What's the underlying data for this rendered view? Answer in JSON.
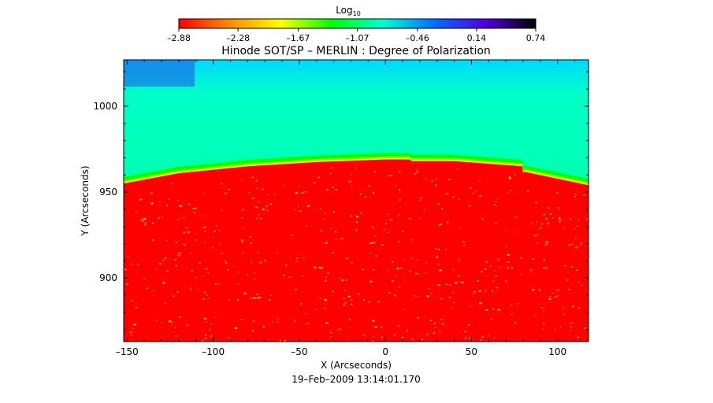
{
  "chart_data": {
    "type": "heatmap",
    "title": "Hinode SOT/SP – MERLIN : Degree of Polarization",
    "xlabel": "X (Arcseconds)",
    "ylabel": "Y (Arcseconds)",
    "timestamp": "19–Feb–2009 13:14:01.170",
    "xlim": [
      -152,
      118
    ],
    "ylim": [
      863,
      1027
    ],
    "x_ticks": [
      -150,
      -100,
      -50,
      0,
      50,
      100
    ],
    "x_tick_labels": [
      "–150",
      "–100",
      "–50",
      "0",
      "50",
      "100"
    ],
    "y_ticks": [
      900,
      950,
      1000
    ],
    "y_tick_labels": [
      "900",
      "950",
      "1000"
    ],
    "colorbar": {
      "label": "Log",
      "label_subscript": "10",
      "range": [
        -2.88,
        0.74
      ],
      "ticks": [
        -2.88,
        -2.28,
        -1.67,
        -1.07,
        -0.46,
        0.14,
        0.74
      ],
      "tick_labels": [
        "–2.88",
        "–2.28",
        "–1.67",
        "–1.07",
        "–0.46",
        "0.14",
        "0.74"
      ],
      "colors": [
        "#ff0000",
        "#ff8c00",
        "#ffff00",
        "#00ff00",
        "#00ffd0",
        "#0070ff",
        "#5000e0",
        "#000000"
      ]
    },
    "limb": [
      {
        "x": -152,
        "y": 955
      },
      {
        "x": -120,
        "y": 961
      },
      {
        "x": -80,
        "y": 965
      },
      {
        "x": -40,
        "y": 967.5
      },
      {
        "x": 0,
        "y": 969
      },
      {
        "x": 40,
        "y": 969
      },
      {
        "x": 80,
        "y": 966
      },
      {
        "x": 118,
        "y": 958
      }
    ],
    "scan_segments": [
      {
        "x_from": 15,
        "x_to": 80,
        "limb_offset": -1
      },
      {
        "x_from": 80,
        "x_to": 118,
        "limb_offset": -4
      }
    ],
    "regions": {
      "disk_value": -2.88,
      "limb_value": -1.6,
      "off_limb_value": -0.9,
      "top_edge_value": -0.3
    }
  }
}
